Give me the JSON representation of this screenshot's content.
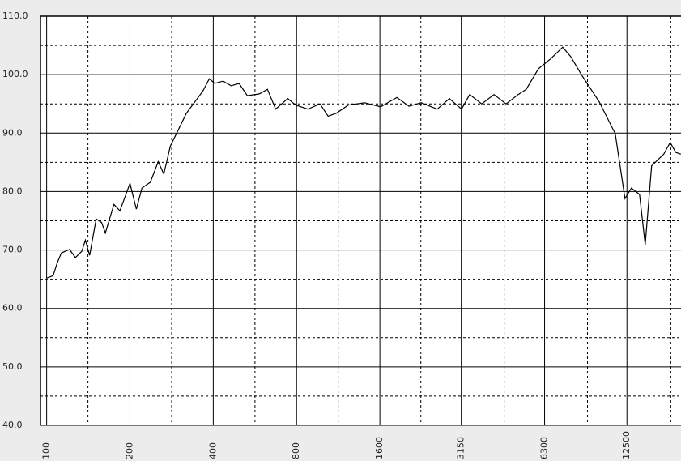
{
  "chart_data": {
    "type": "line",
    "log_x": true,
    "x": [
      100,
      105.5,
      109,
      113,
      121,
      127,
      134,
      138,
      143,
      151,
      158,
      163,
      175,
      184,
      200,
      211,
      221,
      237,
      253,
      265,
      280,
      320,
      367,
      387,
      405,
      434,
      464,
      496,
      531,
      587,
      628,
      672,
      743,
      795,
      879,
      972,
      1040,
      1113,
      1230,
      1408,
      1611,
      1843,
      2039,
      2255,
      2579,
      2854,
      3158,
      3378,
      3735,
      4133,
      4572,
      5057,
      5408,
      5984,
      6621,
      7322,
      7831,
      8664,
      9910,
      11340,
      12300,
      12970,
      13880,
      14550,
      15350,
      16980,
      17910,
      18770,
      19570
    ],
    "series": [
      {
        "color": "#000000",
        "values": [
          65.2,
          65.6,
          67.7,
          69.5,
          70.1,
          68.7,
          69.8,
          71.7,
          69.1,
          75.3,
          74.7,
          72.9,
          77.8,
          76.7,
          81.4,
          77.0,
          80.6,
          81.6,
          85.1,
          83.0,
          87.8,
          93.4,
          97.2,
          99.3,
          98.5,
          98.9,
          98.1,
          98.5,
          96.4,
          96.7,
          97.5,
          94.1,
          95.9,
          94.8,
          94.1,
          95.0,
          92.9,
          93.4,
          94.8,
          95.2,
          94.5,
          96.1,
          94.6,
          95.2,
          94.1,
          95.9,
          94.1,
          96.6,
          95.0,
          96.6,
          95.0,
          96.6,
          97.5,
          101.0,
          102.7,
          104.7,
          103.1,
          99.6,
          95.4,
          89.9,
          78.8,
          80.6,
          79.5,
          70.9,
          84.4,
          86.4,
          88.4,
          86.7,
          86.4
        ]
      }
    ],
    "xlim": [
      95,
      19600
    ],
    "ylim": [
      40,
      110
    ],
    "xticks": [
      100,
      200,
      400,
      800,
      1600,
      3150,
      6300,
      12500
    ],
    "xminor": [
      141,
      283,
      566,
      1131,
      2250,
      4500,
      9000,
      18000
    ],
    "yticks": [
      {
        "value": 40,
        "label": "40.0"
      },
      {
        "value": 50,
        "label": "50.0"
      },
      {
        "value": 60,
        "label": "60.0"
      },
      {
        "value": 70,
        "label": "70.0"
      },
      {
        "value": 80,
        "label": "80.0"
      },
      {
        "value": 90,
        "label": "90.0"
      },
      {
        "value": 100,
        "label": "100.0"
      },
      {
        "value": 110,
        "label": "110.0"
      }
    ],
    "yminor": [
      45,
      55,
      65,
      75,
      85,
      95,
      105
    ],
    "grid": true
  }
}
